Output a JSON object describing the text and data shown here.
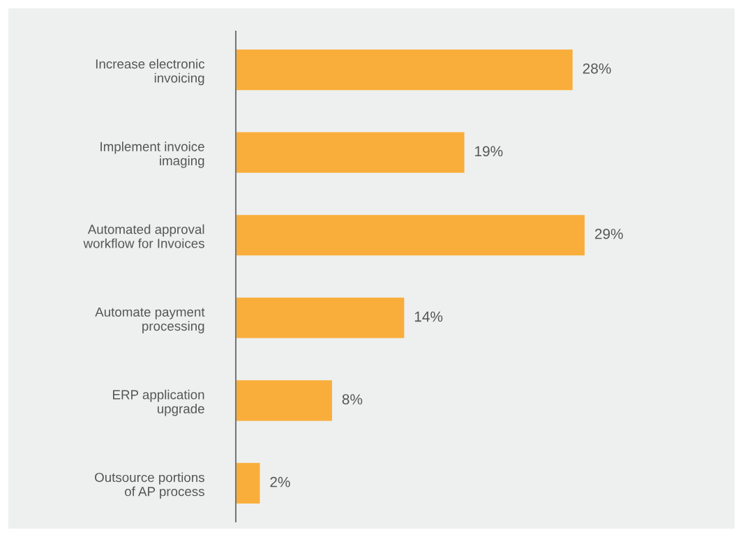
{
  "chart_data": {
    "type": "bar",
    "orientation": "horizontal",
    "categories": [
      "Increase electronic\ninvoicing",
      "Implement invoice\nimaging",
      "Automated approval\nworkflow for Invoices",
      "Automate payment\nprocessing",
      "ERP application\nupgrade",
      "Outsource portions\nof AP process"
    ],
    "values": [
      28,
      19,
      29,
      14,
      8,
      2
    ],
    "value_labels": [
      "28%",
      "19%",
      "29%",
      "14%",
      "8%",
      "2%"
    ],
    "color": "#f9ae3b",
    "grid": false,
    "legend": false
  }
}
